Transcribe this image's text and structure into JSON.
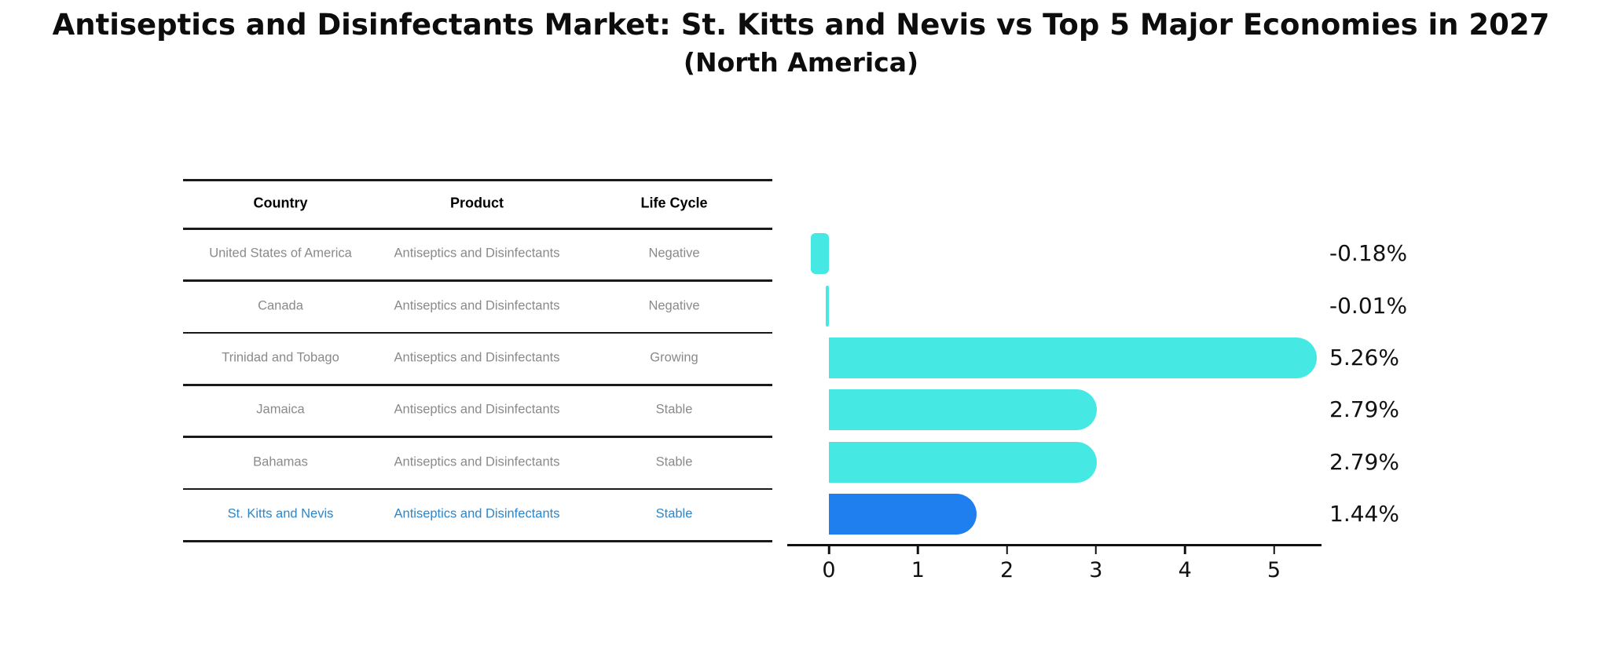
{
  "header": {
    "title": "Antiseptics and Disinfectants Market: St. Kitts and Nevis vs Top 5 Major Economies in 2027",
    "subtitle": "(North America)"
  },
  "table": {
    "columns": [
      "Country",
      "Product",
      "Life Cycle"
    ],
    "rows": [
      {
        "country": "United States of America",
        "product": "Antiseptics and Disinfectants",
        "life_cycle": "Negative",
        "highlight": false
      },
      {
        "country": "Canada",
        "product": "Antiseptics and Disinfectants",
        "life_cycle": "Negative",
        "highlight": false
      },
      {
        "country": "Trinidad and Tobago",
        "product": "Antiseptics and Disinfectants",
        "life_cycle": "Growing",
        "highlight": false
      },
      {
        "country": "Jamaica",
        "product": "Antiseptics and Disinfectants",
        "life_cycle": "Stable",
        "highlight": false
      },
      {
        "country": "Bahamas",
        "product": "Antiseptics and Disinfectants",
        "life_cycle": "Stable",
        "highlight": false
      },
      {
        "country": "St. Kitts and Nevis",
        "product": "Antiseptics and Disinfectants",
        "life_cycle": "Stable",
        "highlight": true
      }
    ]
  },
  "chart_data": {
    "type": "bar",
    "orientation": "horizontal",
    "title": "Antiseptics and Disinfectants Market: St. Kitts and Nevis vs Top 5 Major Economies in 2027 (North America)",
    "categories": [
      "United States of America",
      "Canada",
      "Trinidad and Tobago",
      "Jamaica",
      "Bahamas",
      "St. Kitts and Nevis"
    ],
    "values": [
      -0.18,
      -0.01,
      5.26,
      2.79,
      2.79,
      1.44
    ],
    "value_labels": [
      "-0.18%",
      "-0.01%",
      "5.26%",
      "2.79%",
      "2.79%",
      "1.44%"
    ],
    "xticks": [
      "0",
      "1",
      "2",
      "3",
      "4",
      "5"
    ],
    "xlim": [
      -0.46,
      5.55
    ],
    "grid": false,
    "legend": false,
    "bar_color": "#45e8e2",
    "highlight_color": "#1f7fee",
    "highlight_index": 5
  },
  "colors": {
    "row_text": "#8a8a8a",
    "highlight_text": "#2e86c8",
    "axis_text": "#111111"
  }
}
